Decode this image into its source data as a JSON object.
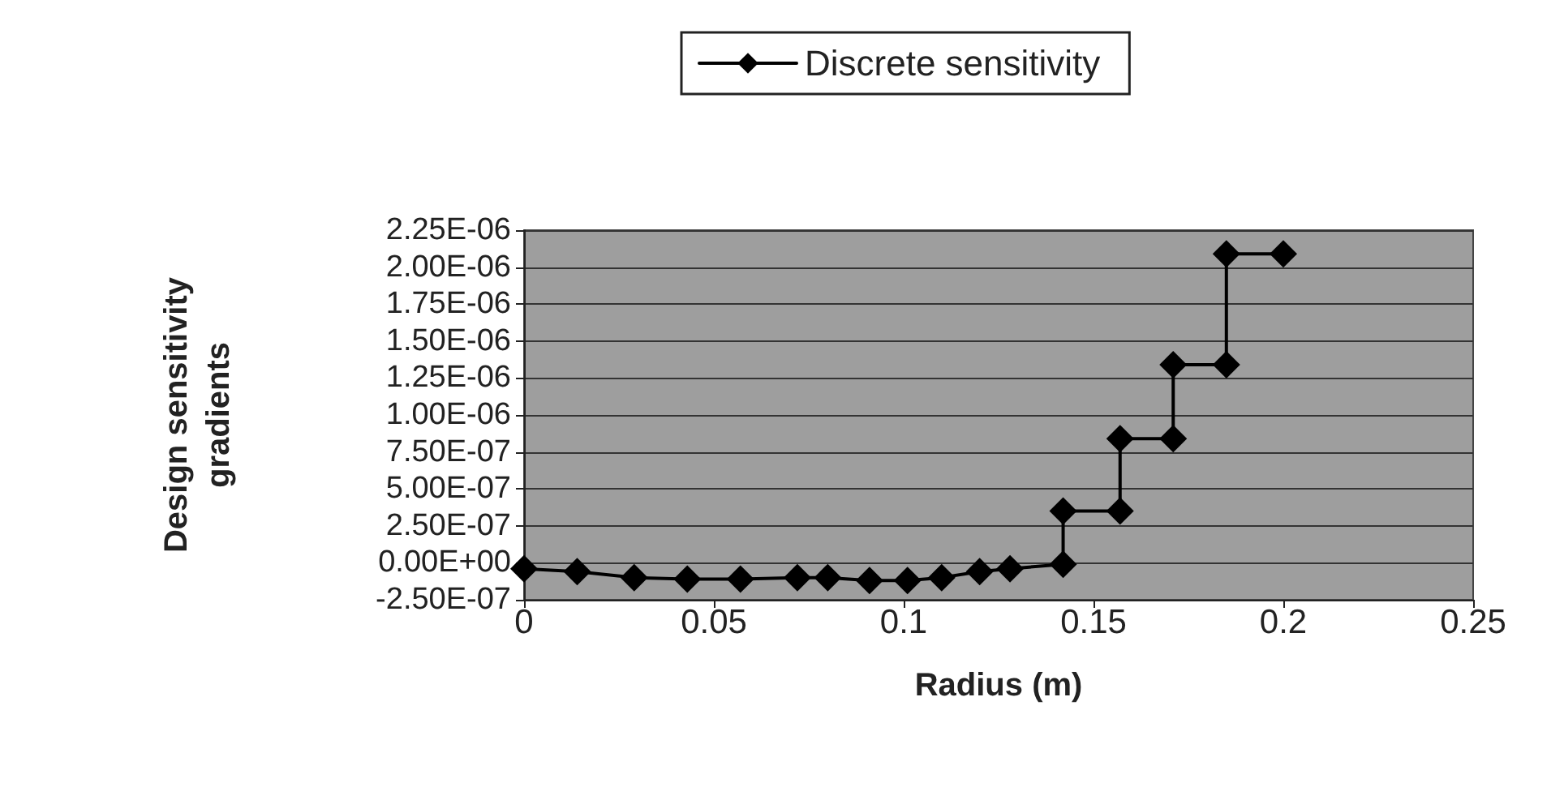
{
  "chart_data": {
    "type": "line",
    "xlabel": "Radius (m)",
    "ylabel": "Design sensitivity gradients",
    "series": [
      {
        "name": "Discrete sensitivity",
        "color": "#000000",
        "x": [
          0,
          0.014,
          0.029,
          0.043,
          0.057,
          0.072,
          0.08,
          0.091,
          0.101,
          0.11,
          0.12,
          0.128,
          0.142,
          0.142,
          0.157,
          0.157,
          0.171,
          0.171,
          0.185,
          0.185,
          0.2
        ],
        "values": [
          -4e-08,
          -6e-08,
          -1e-07,
          -1.1e-07,
          -1.1e-07,
          -1e-07,
          -1e-07,
          -1.2e-07,
          -1.2e-07,
          -1e-07,
          -6e-08,
          -4e-08,
          -1e-08,
          3.5e-07,
          3.5e-07,
          8.4e-07,
          8.4e-07,
          1.34e-06,
          1.34e-06,
          2.09e-06,
          2.09e-06
        ]
      }
    ],
    "xlim": [
      0,
      0.25
    ],
    "xticks": [
      0,
      0.05,
      0.1,
      0.15,
      0.2,
      0.25
    ],
    "ylim": [
      -2.5e-07,
      2.25e-06
    ],
    "yticks": [
      {
        "value": -2.5e-07,
        "label": "-2.50E-07"
      },
      {
        "value": 0,
        "label": "0.00E+00"
      },
      {
        "value": 2.5e-07,
        "label": "2.50E-07"
      },
      {
        "value": 5e-07,
        "label": "5.00E-07"
      },
      {
        "value": 7.5e-07,
        "label": "7.50E-07"
      },
      {
        "value": 1e-06,
        "label": "1.00E-06"
      },
      {
        "value": 1.25e-06,
        "label": "1.25E-06"
      },
      {
        "value": 1.5e-06,
        "label": "1.50E-06"
      },
      {
        "value": 1.75e-06,
        "label": "1.75E-06"
      },
      {
        "value": 2e-06,
        "label": "2.00E-06"
      },
      {
        "value": 2.25e-06,
        "label": "2.25E-06"
      }
    ],
    "grid": "y",
    "legend": "top",
    "marker": "diamond",
    "line_style": "solid"
  }
}
